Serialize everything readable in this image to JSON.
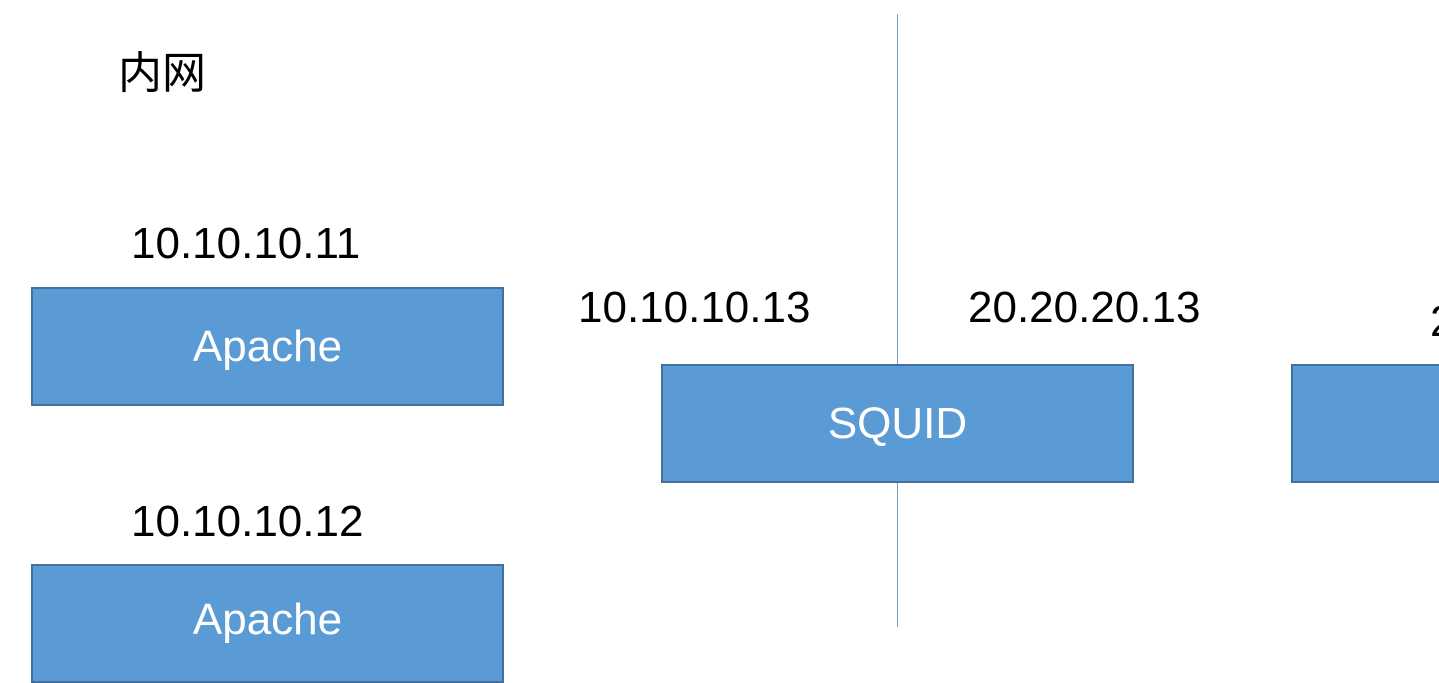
{
  "diagram": {
    "region_label": "内网",
    "nodes": [
      {
        "ip": "10.10.10.11",
        "label": "Apache"
      },
      {
        "ip": "10.10.10.12",
        "label": "Apache"
      }
    ],
    "proxy": {
      "ip_inner": "10.10.10.13",
      "ip_outer": "20.20.20.13",
      "label": "SQUID"
    },
    "right_node": {
      "ip_partial": "2"
    }
  },
  "colors": {
    "box_fill": "#5b9bd5",
    "box_border": "#41719c",
    "divider": "#7a9fbd"
  }
}
